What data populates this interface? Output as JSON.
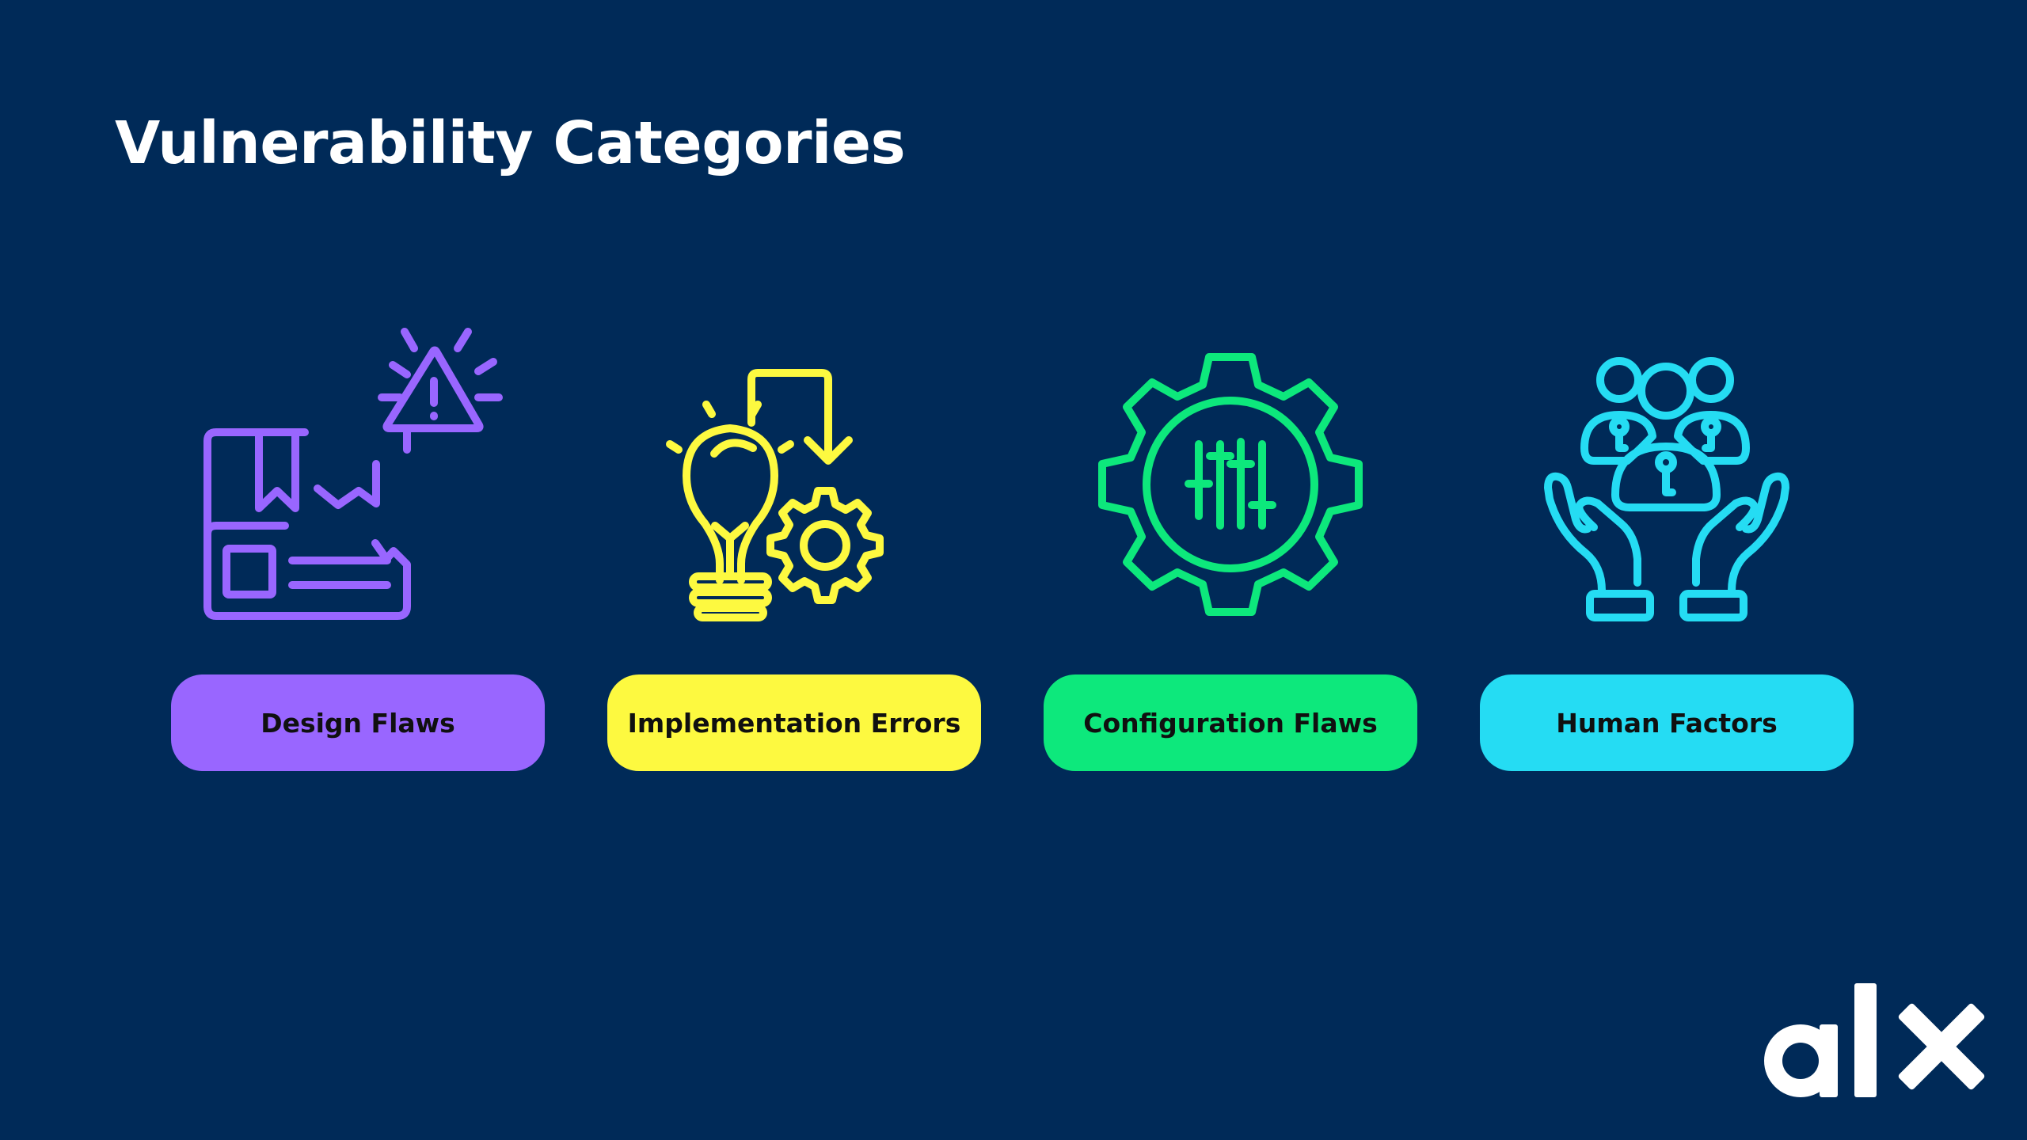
{
  "slide": {
    "title": "Vulnerability Categories"
  },
  "categories": [
    {
      "label": "Design Flaws",
      "icon": "damaged-box-alert-icon",
      "color": "#9966ff"
    },
    {
      "label": "Implementation Errors",
      "icon": "lightbulb-gear-icon",
      "color": "#fdf940"
    },
    {
      "label": "Configuration Flaws",
      "icon": "gear-sliders-icon",
      "color": "#0de87c"
    },
    {
      "label": "Human Factors",
      "icon": "hands-people-icon",
      "color": "#25dcf3"
    }
  ],
  "brand": {
    "logo_text": "alx",
    "background": "#002a58",
    "logo_color": "#ffffff"
  }
}
